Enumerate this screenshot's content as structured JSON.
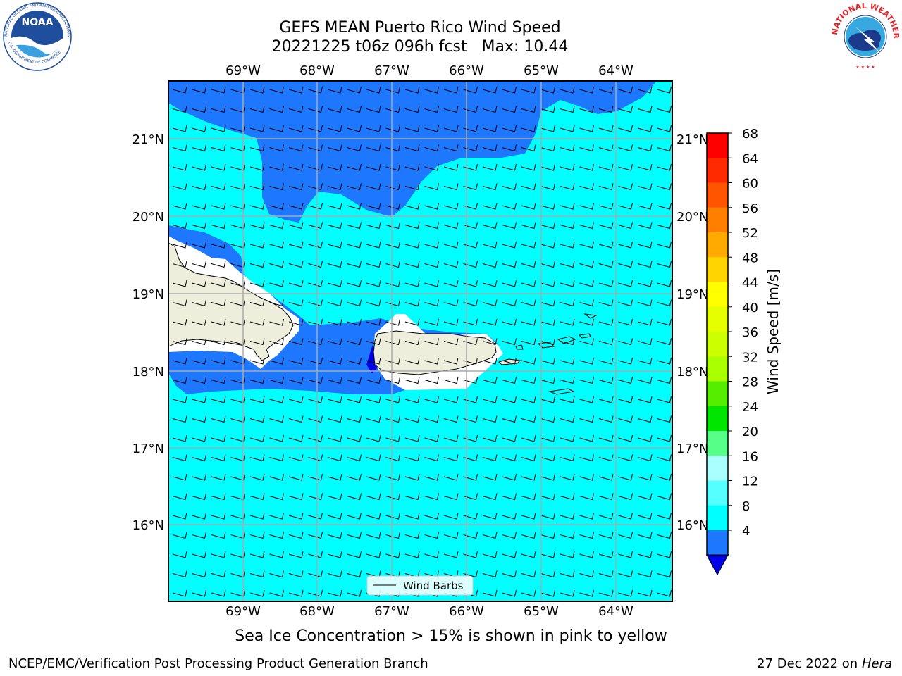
{
  "header": {
    "title_line1": "GEFS MEAN Puerto Rico Wind Speed",
    "title_line2": "20221225 t06z 096h fcst   Max: 10.44"
  },
  "logos": {
    "left": {
      "name": "NOAA",
      "ring_text": "NATIONAL OCEANIC AND ATMOSPHERIC ADMINISTRATION",
      "ring_text_bottom": "U.S. DEPARTMENT OF COMMERCE",
      "color": "#1f4e9c"
    },
    "right": {
      "name": "NATIONAL WEATHER SERVICE",
      "text_color": "#e3262b",
      "cloud_color": "#1b3a8c",
      "sky_color": "#38a8e0"
    }
  },
  "map": {
    "lon_labels": [
      "69°W",
      "68°W",
      "67°W",
      "66°W",
      "65°W",
      "64°W"
    ],
    "lat_labels": [
      "21°N",
      "20°N",
      "19°N",
      "18°N",
      "17°N",
      "16°N"
    ],
    "land_color": "#eeeedc",
    "legend_label": "Wind Barbs",
    "colors": {
      "4-8": "#1e78ff",
      "8-12": "#00ffff",
      "below_4": "#0000e6"
    }
  },
  "colorbar": {
    "label": "Wind Speed [m/s]",
    "ticks": [
      "68",
      "64",
      "60",
      "56",
      "52",
      "48",
      "44",
      "40",
      "36",
      "32",
      "28",
      "24",
      "20",
      "16",
      "12",
      "8",
      "4"
    ],
    "colors_top_to_bottom": [
      "#ff0000",
      "#ff2a00",
      "#ff5500",
      "#ff8000",
      "#ffaa00",
      "#ffd400",
      "#ffff00",
      "#e5ff00",
      "#ccff00",
      "#aaff00",
      "#55ee00",
      "#00e600",
      "#55ff88",
      "#aaffff",
      "#55ffff",
      "#00ffff",
      "#1e78ff"
    ],
    "extend_color": "#0000e6"
  },
  "footer": {
    "sea_ice": "Sea Ice Concentration > 15% is shown in pink to yellow",
    "credit": "NCEP/EMC/Verification Post Processing Product Generation Branch",
    "date": "27 Dec 2022 on",
    "machine": "Hera"
  }
}
